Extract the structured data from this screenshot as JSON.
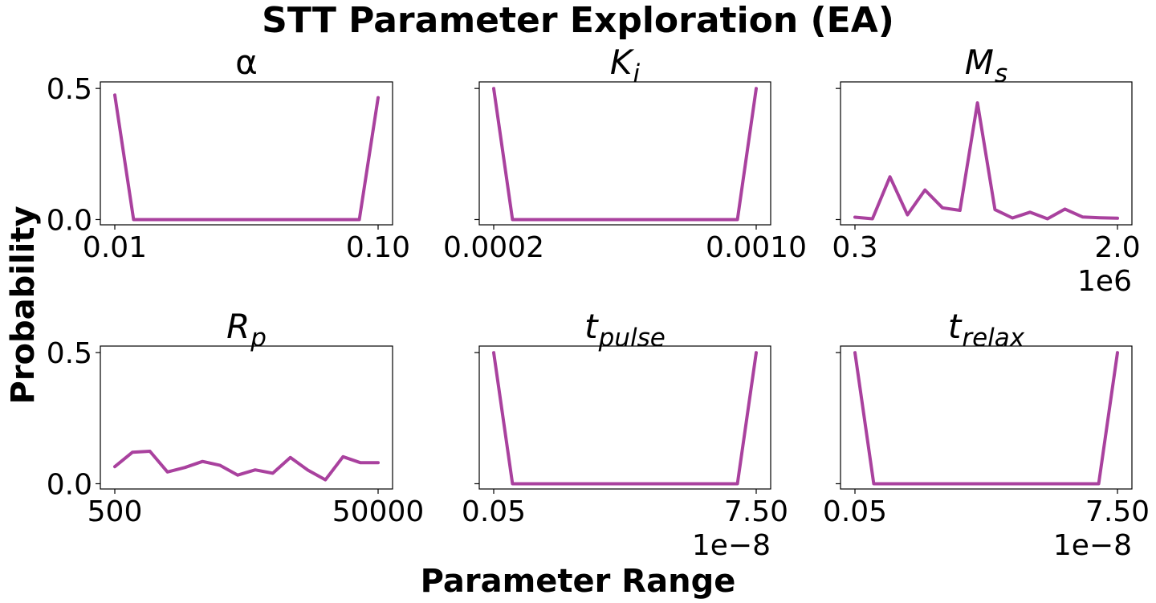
{
  "figure": {
    "title": "STT Parameter Exploration (EA)",
    "xlabel": "Parameter Range",
    "ylabel": "Probability"
  },
  "colors": {
    "line": "#a9419e"
  },
  "chart_data": [
    {
      "type": "line",
      "title_base": "α",
      "title_sub": "",
      "title_italic": false,
      "x_ticks": [
        "0.01",
        "0.10"
      ],
      "offset_text": "",
      "y_ticks": [
        "0.0",
        "0.5"
      ],
      "show_y_tick_labels": true,
      "xlim": [
        0,
        14
      ],
      "ylim": [
        -0.02,
        0.525
      ],
      "x": [
        0,
        1,
        2,
        3,
        4,
        5,
        6,
        7,
        8,
        9,
        10,
        11,
        12,
        13,
        14
      ],
      "values": [
        0.475,
        0.0,
        0.0,
        0.0,
        0.0,
        0.0,
        0.0,
        0.0,
        0.0,
        0.0,
        0.0,
        0.0,
        0.0,
        0.0,
        0.465
      ]
    },
    {
      "type": "line",
      "title_base": "K",
      "title_sub": "i",
      "title_italic": true,
      "x_ticks": [
        "0.0002",
        "0.0010"
      ],
      "offset_text": "",
      "y_ticks": [
        "0.0",
        "0.5"
      ],
      "show_y_tick_labels": false,
      "xlim": [
        0,
        14
      ],
      "ylim": [
        -0.02,
        0.525
      ],
      "x": [
        0,
        1,
        2,
        3,
        4,
        5,
        6,
        7,
        8,
        9,
        10,
        11,
        12,
        13,
        14
      ],
      "values": [
        0.5,
        0.0,
        0.0,
        0.0,
        0.0,
        0.0,
        0.0,
        0.0,
        0.0,
        0.0,
        0.0,
        0.0,
        0.0,
        0.0,
        0.5
      ]
    },
    {
      "type": "line",
      "title_base": "M",
      "title_sub": "s",
      "title_italic": true,
      "x_ticks": [
        "0.3",
        "2.0"
      ],
      "offset_text": "1e6",
      "y_ticks": [
        "0.0",
        "0.5"
      ],
      "show_y_tick_labels": false,
      "xlim": [
        0,
        15
      ],
      "ylim": [
        -0.02,
        0.525
      ],
      "x": [
        0,
        1,
        2,
        3,
        4,
        5,
        6,
        7,
        8,
        9,
        10,
        11,
        12,
        13,
        14,
        15
      ],
      "values": [
        0.009,
        0.003,
        0.163,
        0.018,
        0.113,
        0.045,
        0.035,
        0.445,
        0.038,
        0.006,
        0.028,
        0.003,
        0.04,
        0.01,
        0.007,
        0.005
      ]
    },
    {
      "type": "line",
      "title_base": "R",
      "title_sub": "p",
      "title_italic": true,
      "x_ticks": [
        "500",
        "50000"
      ],
      "offset_text": "",
      "y_ticks": [
        "0.0",
        "0.5"
      ],
      "show_y_tick_labels": true,
      "xlim": [
        0,
        15
      ],
      "ylim": [
        -0.02,
        0.525
      ],
      "x": [
        0,
        1,
        2,
        3,
        4,
        5,
        6,
        7,
        8,
        9,
        10,
        11,
        12,
        13,
        14,
        15
      ],
      "values": [
        0.065,
        0.12,
        0.124,
        0.045,
        0.062,
        0.085,
        0.07,
        0.033,
        0.053,
        0.04,
        0.1,
        0.052,
        0.015,
        0.103,
        0.08,
        0.08
      ]
    },
    {
      "type": "line",
      "title_base": "t",
      "title_sub": "pulse",
      "title_italic": true,
      "x_ticks": [
        "0.05",
        "7.50"
      ],
      "offset_text": "1e−8",
      "y_ticks": [
        "0.0",
        "0.5"
      ],
      "show_y_tick_labels": false,
      "xlim": [
        0,
        14
      ],
      "ylim": [
        -0.02,
        0.525
      ],
      "x": [
        0,
        1,
        2,
        3,
        4,
        5,
        6,
        7,
        8,
        9,
        10,
        11,
        12,
        13,
        14
      ],
      "values": [
        0.5,
        0.0,
        0.0,
        0.0,
        0.0,
        0.0,
        0.0,
        0.0,
        0.0,
        0.0,
        0.0,
        0.0,
        0.0,
        0.0,
        0.5
      ]
    },
    {
      "type": "line",
      "title_base": "t",
      "title_sub": "relax",
      "title_italic": true,
      "x_ticks": [
        "0.05",
        "7.50"
      ],
      "offset_text": "1e−8",
      "y_ticks": [
        "0.0",
        "0.5"
      ],
      "show_y_tick_labels": false,
      "xlim": [
        0,
        14
      ],
      "ylim": [
        -0.02,
        0.525
      ],
      "x": [
        0,
        1,
        2,
        3,
        4,
        5,
        6,
        7,
        8,
        9,
        10,
        11,
        12,
        13,
        14
      ],
      "values": [
        0.5,
        0.0,
        0.0,
        0.0,
        0.0,
        0.0,
        0.0,
        0.0,
        0.0,
        0.0,
        0.0,
        0.0,
        0.0,
        0.0,
        0.5
      ]
    }
  ]
}
